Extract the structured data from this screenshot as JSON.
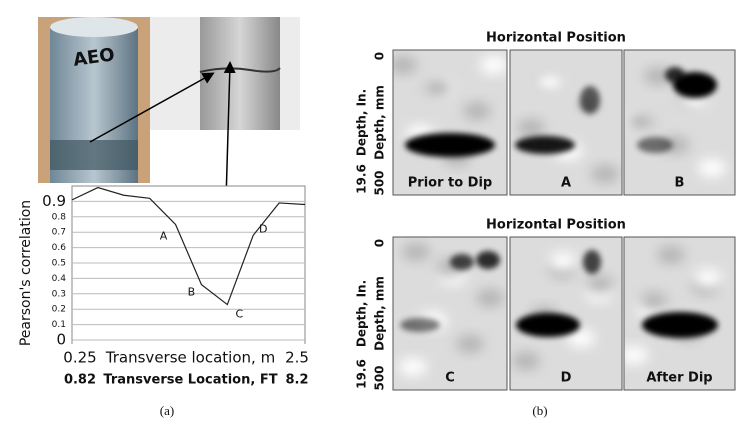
{
  "photo_label": "AEO",
  "chart_data": {
    "type": "line",
    "x": [
      0.25,
      0.5,
      0.75,
      1.0,
      1.25,
      1.5,
      1.75,
      2.0,
      2.25,
      2.5
    ],
    "values": [
      0.91,
      0.99,
      0.94,
      0.92,
      0.75,
      0.36,
      0.23,
      0.68,
      0.89,
      0.88
    ],
    "color": "#222222",
    "xlim": [
      0.25,
      2.5
    ],
    "xticks": [
      0.25,
      2.5
    ],
    "ylim": [
      0,
      1
    ],
    "yticks": [
      0,
      0.1,
      0.2,
      0.3,
      0.4,
      0.5,
      0.6,
      0.7,
      0.8,
      0.9
    ],
    "grid": true,
    "xlabel": "Transverse location, m",
    "ylabel": "Pearson's correlation",
    "x2label": "Transverse Location, FT",
    "x2lim": [
      0.82,
      8.2
    ],
    "x2ticks": [
      0.82,
      8.2
    ],
    "annotations": [
      "A",
      "B",
      "C",
      "D"
    ]
  },
  "radar": {
    "title": "Horizontal Position",
    "in_label": "Depth, In.",
    "mm_label": "Depth, mm",
    "in_ticks": [
      19.6
    ],
    "mm_ticks": [
      0,
      500
    ],
    "rows": [
      [
        "Prior to Dip",
        "A",
        "B"
      ],
      [
        "C",
        "D",
        "After Dip"
      ]
    ]
  },
  "captions": [
    "(a)",
    "(b)"
  ]
}
